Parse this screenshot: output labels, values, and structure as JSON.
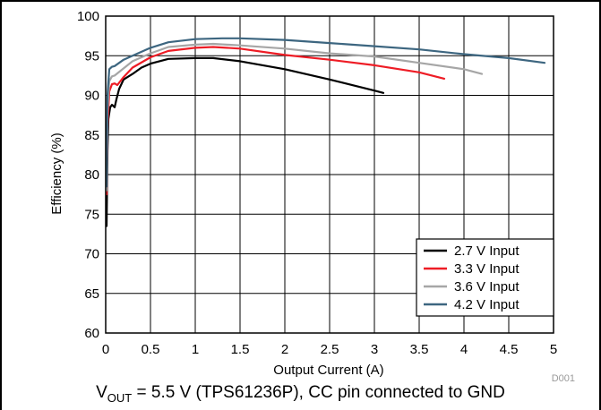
{
  "chart_data": {
    "type": "line",
    "title": "",
    "xlabel": "Output Current (A)",
    "ylabel": "Efficiency (%)",
    "xlim": [
      0,
      5
    ],
    "ylim": [
      60,
      100
    ],
    "xticks": [
      "0",
      "0.5",
      "1",
      "1.5",
      "2",
      "2.5",
      "3",
      "3.5",
      "4",
      "4.5",
      "5"
    ],
    "yticks": [
      "60",
      "65",
      "70",
      "75",
      "80",
      "85",
      "90",
      "95",
      "100"
    ],
    "grid": true,
    "legend_position": "bottom-right",
    "watermark": "D001",
    "series": [
      {
        "name": "2.7 V Input",
        "color": "#000000",
        "points": [
          [
            0.01,
            73.5
          ],
          [
            0.02,
            83
          ],
          [
            0.03,
            87
          ],
          [
            0.05,
            88.5
          ],
          [
            0.07,
            88.8
          ],
          [
            0.1,
            88.5
          ],
          [
            0.12,
            89.5
          ],
          [
            0.15,
            90.8
          ],
          [
            0.2,
            92
          ],
          [
            0.3,
            92.7
          ],
          [
            0.4,
            93.5
          ],
          [
            0.5,
            94
          ],
          [
            0.7,
            94.6
          ],
          [
            1.0,
            94.7
          ],
          [
            1.2,
            94.7
          ],
          [
            1.5,
            94.3
          ],
          [
            2.0,
            93.3
          ],
          [
            2.5,
            92
          ],
          [
            3.0,
            90.6
          ],
          [
            3.1,
            90.3
          ]
        ]
      },
      {
        "name": "3.3 V Input",
        "color": "#ee1c25",
        "points": [
          [
            0.01,
            77.5
          ],
          [
            0.02,
            86
          ],
          [
            0.04,
            90.5
          ],
          [
            0.07,
            91.4
          ],
          [
            0.1,
            91.5
          ],
          [
            0.13,
            91.3
          ],
          [
            0.2,
            92.3
          ],
          [
            0.3,
            93.5
          ],
          [
            0.5,
            94.8
          ],
          [
            0.7,
            95.6
          ],
          [
            1.0,
            96
          ],
          [
            1.2,
            96.1
          ],
          [
            1.5,
            95.9
          ],
          [
            2.0,
            95.1
          ],
          [
            2.5,
            94.5
          ],
          [
            3.0,
            93.8
          ],
          [
            3.5,
            92.9
          ],
          [
            3.78,
            92.1
          ]
        ]
      },
      {
        "name": "3.6 V Input",
        "color": "#a6a6a6",
        "points": [
          [
            0.01,
            78
          ],
          [
            0.02,
            88
          ],
          [
            0.04,
            91.8
          ],
          [
            0.07,
            92.4
          ],
          [
            0.1,
            92.5
          ],
          [
            0.2,
            93.4
          ],
          [
            0.3,
            94.3
          ],
          [
            0.5,
            95.3
          ],
          [
            0.7,
            96.1
          ],
          [
            1.0,
            96.4
          ],
          [
            1.2,
            96.5
          ],
          [
            1.5,
            96.3
          ],
          [
            2.0,
            95.9
          ],
          [
            2.5,
            95.3
          ],
          [
            3.0,
            94.9
          ],
          [
            3.5,
            94.1
          ],
          [
            4.0,
            93.3
          ],
          [
            4.2,
            92.7
          ]
        ]
      },
      {
        "name": "4.2 V Input",
        "color": "#3d6680",
        "points": [
          [
            0.01,
            78.5
          ],
          [
            0.02,
            90
          ],
          [
            0.04,
            93.3
          ],
          [
            0.07,
            93.6
          ],
          [
            0.1,
            93.7
          ],
          [
            0.2,
            94.5
          ],
          [
            0.3,
            95
          ],
          [
            0.5,
            96
          ],
          [
            0.7,
            96.7
          ],
          [
            1.0,
            97.1
          ],
          [
            1.3,
            97.2
          ],
          [
            1.5,
            97.2
          ],
          [
            2.0,
            97
          ],
          [
            2.5,
            96.6
          ],
          [
            3.0,
            96.2
          ],
          [
            3.5,
            95.8
          ],
          [
            4.0,
            95.2
          ],
          [
            4.5,
            94.7
          ],
          [
            4.9,
            94.1
          ]
        ]
      }
    ]
  },
  "caption": {
    "prefix": "V",
    "sub": "OUT",
    "text": " = 5.5 V (TPS61236P), CC pin connected to GND"
  }
}
